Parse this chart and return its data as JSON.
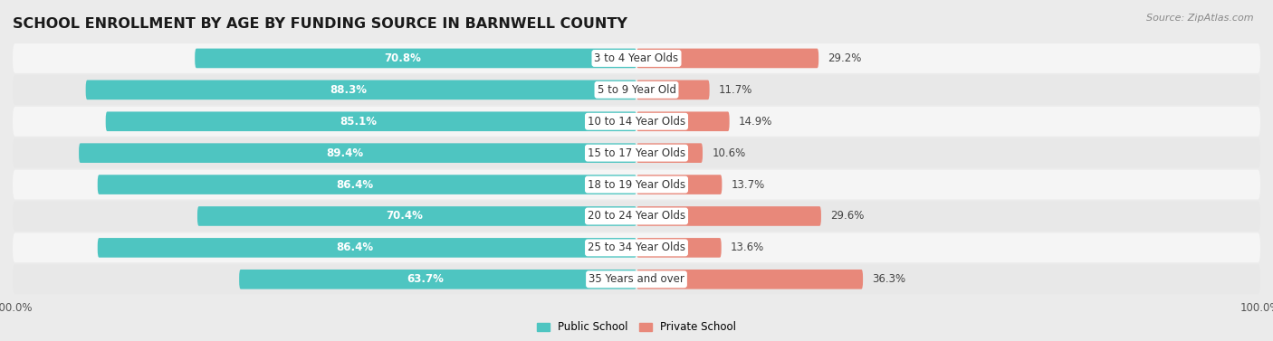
{
  "title": "SCHOOL ENROLLMENT BY AGE BY FUNDING SOURCE IN BARNWELL COUNTY",
  "source": "Source: ZipAtlas.com",
  "categories": [
    "3 to 4 Year Olds",
    "5 to 9 Year Old",
    "10 to 14 Year Olds",
    "15 to 17 Year Olds",
    "18 to 19 Year Olds",
    "20 to 24 Year Olds",
    "25 to 34 Year Olds",
    "35 Years and over"
  ],
  "public_values": [
    70.8,
    88.3,
    85.1,
    89.4,
    86.4,
    70.4,
    86.4,
    63.7
  ],
  "private_values": [
    29.2,
    11.7,
    14.9,
    10.6,
    13.7,
    29.6,
    13.6,
    36.3
  ],
  "public_color": "#4EC5C1",
  "private_color": "#E8887A",
  "bg_color": "#EBEBEB",
  "row_bg_odd": "#F5F5F5",
  "row_bg_even": "#E8E8E8",
  "bar_height": 0.62,
  "xlim_left": -100,
  "xlim_right": 100,
  "title_fontsize": 11.5,
  "label_fontsize": 8.5,
  "value_fontsize": 8.5,
  "tick_fontsize": 8.5,
  "source_fontsize": 8
}
